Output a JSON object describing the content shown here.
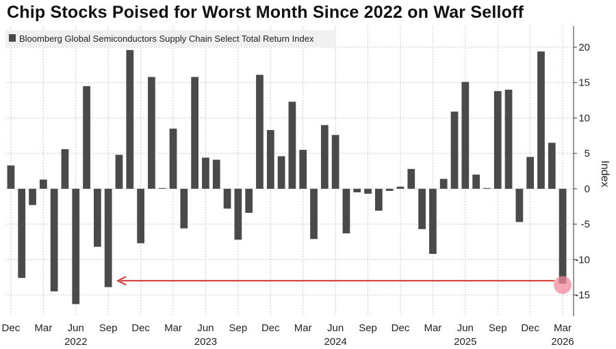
{
  "title": "Chip Stocks Poised for Worst Month Since 2022 on War Selloff",
  "colors": {
    "bar": "#4a4a4a",
    "grid": "#c8c8c8",
    "arrow": "#d0312d",
    "marker": "#f08a9a",
    "legend_bg": "#f0f0f0"
  },
  "chart_data": {
    "type": "bar",
    "legend": "Bloomberg Global Semiconductors Supply Chain Select Total Return Index",
    "ylabel": "Index",
    "ylim": [
      -18,
      23
    ],
    "yticks": [
      20,
      15,
      10,
      5,
      0,
      -5,
      -10,
      -15
    ],
    "y_axis_position": "right",
    "grid": true,
    "x_tick_labels": [
      {
        "index": 0,
        "month": "Dec",
        "year": ""
      },
      {
        "index": 3,
        "month": "Mar",
        "year": ""
      },
      {
        "index": 6,
        "month": "Jun",
        "year": "2022"
      },
      {
        "index": 9,
        "month": "Sep",
        "year": ""
      },
      {
        "index": 12,
        "month": "Dec",
        "year": ""
      },
      {
        "index": 15,
        "month": "Mar",
        "year": ""
      },
      {
        "index": 18,
        "month": "Jun",
        "year": "2023"
      },
      {
        "index": 21,
        "month": "Sep",
        "year": ""
      },
      {
        "index": 24,
        "month": "Dec",
        "year": ""
      },
      {
        "index": 27,
        "month": "Mar",
        "year": ""
      },
      {
        "index": 30,
        "month": "Jun",
        "year": "2024"
      },
      {
        "index": 33,
        "month": "Sep",
        "year": ""
      },
      {
        "index": 36,
        "month": "Dec",
        "year": ""
      },
      {
        "index": 39,
        "month": "Mar",
        "year": ""
      },
      {
        "index": 42,
        "month": "Jun",
        "year": "2025"
      },
      {
        "index": 45,
        "month": "Sep",
        "year": ""
      },
      {
        "index": 48,
        "month": "Dec",
        "year": ""
      },
      {
        "index": 51,
        "month": "Mar",
        "year": "2026"
      }
    ],
    "values": [
      3.3,
      -12.6,
      -2.3,
      1.3,
      -14.5,
      5.6,
      -16.3,
      14.5,
      -8.2,
      -13.9,
      4.8,
      19.6,
      -7.7,
      15.8,
      0.1,
      8.5,
      -5.6,
      15.8,
      4.4,
      4.1,
      -2.8,
      -7.2,
      -3.4,
      16.1,
      8.3,
      4.6,
      12.3,
      5.5,
      -7.1,
      9.0,
      7.6,
      -6.3,
      -0.5,
      -0.7,
      -3.1,
      -0.3,
      0.3,
      2.8,
      -5.7,
      -9.2,
      1.4,
      10.9,
      15.1,
      2.0,
      0.1,
      13.8,
      14.0,
      -4.7,
      4.5,
      19.4,
      6.5,
      -13.4
    ],
    "annotation": {
      "type": "arrow",
      "from_index": 51,
      "to_index": 9,
      "y": -13.0,
      "highlight_index": 51
    }
  }
}
